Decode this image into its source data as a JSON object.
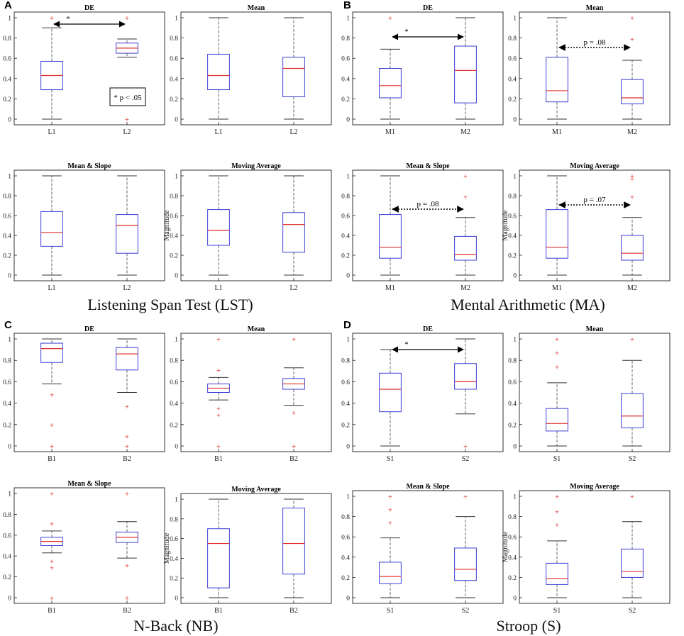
{
  "colors": {
    "box": "#3d3dd6",
    "median": "#e03030",
    "outlier": "#e03030",
    "whisker": "#555555",
    "frame": "#000000"
  },
  "sections": [
    {
      "letter": "A",
      "caption": "Listening Span Test (LST)"
    },
    {
      "letter": "B",
      "caption": "Mental Arithmetic (MA)"
    },
    {
      "letter": "C",
      "caption": "N-Back (NB)"
    },
    {
      "letter": "D",
      "caption": "Stroop (S)"
    }
  ],
  "ylabel": "Magnitude",
  "yticks": [
    "0",
    "0.2",
    "0.4",
    "0.6",
    "0.8",
    "1"
  ],
  "note": "* p < .05",
  "chart_data": [
    {
      "type": "box",
      "title": "DE",
      "categories": [
        "L1",
        "L2"
      ],
      "ylim": [
        0,
        1
      ],
      "boxes": [
        {
          "whislo": 0,
          "q1": 0.29,
          "med": 0.43,
          "q3": 0.57,
          "whishi": 0.9,
          "fliers": [
            1.0
          ]
        },
        {
          "whislo": 0.61,
          "q1": 0.65,
          "med": 0.7,
          "q3": 0.75,
          "whishi": 0.79,
          "fliers": [
            1.0,
            0.0
          ]
        }
      ],
      "annotation": {
        "text": "*",
        "style": "solid"
      }
    },
    {
      "type": "box",
      "title": "Mean",
      "categories": [
        "L1",
        "L2"
      ],
      "ylim": [
        0,
        1
      ],
      "boxes": [
        {
          "whislo": 0,
          "q1": 0.29,
          "med": 0.43,
          "q3": 0.64,
          "whishi": 1.0,
          "fliers": []
        },
        {
          "whislo": 0,
          "q1": 0.22,
          "med": 0.5,
          "q3": 0.61,
          "whishi": 1.0,
          "fliers": []
        }
      ]
    },
    {
      "type": "box",
      "title": "Mean & Slope",
      "categories": [
        "L1",
        "L2"
      ],
      "ylim": [
        0,
        1
      ],
      "boxes": [
        {
          "whislo": 0,
          "q1": 0.29,
          "med": 0.43,
          "q3": 0.64,
          "whishi": 1.0,
          "fliers": []
        },
        {
          "whislo": 0,
          "q1": 0.22,
          "med": 0.5,
          "q3": 0.61,
          "whishi": 1.0,
          "fliers": []
        }
      ]
    },
    {
      "type": "box",
      "title": "Moving Average",
      "categories": [
        "L1",
        "L2"
      ],
      "ylim": [
        0,
        1
      ],
      "ylabel": true,
      "boxes": [
        {
          "whislo": 0,
          "q1": 0.3,
          "med": 0.45,
          "q3": 0.66,
          "whishi": 1.0,
          "fliers": []
        },
        {
          "whislo": 0,
          "q1": 0.23,
          "med": 0.51,
          "q3": 0.63,
          "whishi": 1.0,
          "fliers": []
        }
      ]
    },
    {
      "type": "box",
      "title": "DE",
      "categories": [
        "M1",
        "M2"
      ],
      "ylim": [
        0,
        1
      ],
      "boxes": [
        {
          "whislo": 0,
          "q1": 0.21,
          "med": 0.33,
          "q3": 0.5,
          "whishi": 0.69,
          "fliers": [
            1.0
          ]
        },
        {
          "whislo": 0,
          "q1": 0.16,
          "med": 0.48,
          "q3": 0.72,
          "whishi": 1.0,
          "fliers": []
        }
      ],
      "annotation": {
        "text": "*",
        "style": "solid"
      }
    },
    {
      "type": "box",
      "title": "Mean",
      "categories": [
        "M1",
        "M2"
      ],
      "ylim": [
        0,
        1
      ],
      "boxes": [
        {
          "whislo": 0,
          "q1": 0.17,
          "med": 0.28,
          "q3": 0.61,
          "whishi": 1.0,
          "fliers": []
        },
        {
          "whislo": 0,
          "q1": 0.15,
          "med": 0.21,
          "q3": 0.39,
          "whishi": 0.58,
          "fliers": [
            0.79,
            1.0
          ]
        }
      ],
      "annotation": {
        "text": "p = .08",
        "style": "dotted"
      }
    },
    {
      "type": "box",
      "title": "Mean & Slope",
      "categories": [
        "M1",
        "M2"
      ],
      "ylim": [
        0,
        1
      ],
      "boxes": [
        {
          "whislo": 0,
          "q1": 0.17,
          "med": 0.28,
          "q3": 0.61,
          "whishi": 1.0,
          "fliers": []
        },
        {
          "whislo": 0,
          "q1": 0.15,
          "med": 0.21,
          "q3": 0.39,
          "whishi": 0.58,
          "fliers": [
            0.79,
            1.0
          ]
        }
      ],
      "annotation": {
        "text": "p = .08",
        "style": "dotted"
      }
    },
    {
      "type": "box",
      "title": "Moving Average",
      "categories": [
        "M1",
        "M2"
      ],
      "ylim": [
        0,
        1
      ],
      "ylabel": true,
      "boxes": [
        {
          "whislo": 0,
          "q1": 0.17,
          "med": 0.28,
          "q3": 0.66,
          "whishi": 1.0,
          "fliers": []
        },
        {
          "whislo": 0,
          "q1": 0.15,
          "med": 0.22,
          "q3": 0.4,
          "whishi": 0.58,
          "fliers": [
            0.79,
            0.97,
            1.0
          ]
        }
      ],
      "annotation": {
        "text": "p = .07",
        "style": "dotted"
      }
    },
    {
      "type": "box",
      "title": "DE",
      "categories": [
        "B1",
        "B2"
      ],
      "ylim": [
        0,
        1
      ],
      "boxes": [
        {
          "whislo": 0.58,
          "q1": 0.78,
          "med": 0.91,
          "q3": 0.96,
          "whishi": 1.0,
          "fliers": [
            0.48,
            0.2,
            0.0
          ]
        },
        {
          "whislo": 0.5,
          "q1": 0.71,
          "med": 0.86,
          "q3": 0.92,
          "whishi": 1.0,
          "fliers": [
            0.37,
            0.09,
            0.0
          ]
        }
      ]
    },
    {
      "type": "box",
      "title": "Mean",
      "categories": [
        "B1",
        "B2"
      ],
      "ylim": [
        0,
        1
      ],
      "boxes": [
        {
          "whislo": 0.43,
          "q1": 0.5,
          "med": 0.54,
          "q3": 0.58,
          "whishi": 0.64,
          "fliers": [
            1.0,
            0.71,
            0.35,
            0.29,
            0.0
          ]
        },
        {
          "whislo": 0.38,
          "q1": 0.53,
          "med": 0.58,
          "q3": 0.63,
          "whishi": 0.73,
          "fliers": [
            1.0,
            0.31,
            0.0
          ]
        }
      ]
    },
    {
      "type": "box",
      "title": "Mean & Slope",
      "categories": [
        "B1",
        "B2"
      ],
      "ylim": [
        0,
        1
      ],
      "boxes": [
        {
          "whislo": 0.43,
          "q1": 0.5,
          "med": 0.54,
          "q3": 0.58,
          "whishi": 0.64,
          "fliers": [
            1.0,
            0.71,
            0.35,
            0.29,
            0.0
          ]
        },
        {
          "whislo": 0.38,
          "q1": 0.53,
          "med": 0.58,
          "q3": 0.63,
          "whishi": 0.73,
          "fliers": [
            1.0,
            0.31,
            0.0
          ]
        }
      ]
    },
    {
      "type": "box",
      "title": "Moving Average",
      "categories": [
        "B1",
        "B2"
      ],
      "ylim": [
        0,
        1
      ],
      "ylabel": true,
      "boxes": [
        {
          "whislo": 0,
          "q1": 0.1,
          "med": 0.55,
          "q3": 0.7,
          "whishi": 1.0,
          "fliers": []
        },
        {
          "whislo": 0,
          "q1": 0.24,
          "med": 0.55,
          "q3": 0.91,
          "whishi": 1.0,
          "fliers": []
        }
      ]
    },
    {
      "type": "box",
      "title": "DE",
      "categories": [
        "S1",
        "S2"
      ],
      "ylim": [
        0,
        1
      ],
      "boxes": [
        {
          "whislo": 0,
          "q1": 0.32,
          "med": 0.53,
          "q3": 0.68,
          "whishi": 0.9,
          "fliers": []
        },
        {
          "whislo": 0.3,
          "q1": 0.53,
          "med": 0.6,
          "q3": 0.77,
          "whishi": 1.0,
          "fliers": [
            0.0
          ]
        }
      ],
      "annotation": {
        "text": "*",
        "style": "solid"
      }
    },
    {
      "type": "box",
      "title": "Mean",
      "categories": [
        "S1",
        "S2"
      ],
      "ylim": [
        0,
        1
      ],
      "boxes": [
        {
          "whislo": 0,
          "q1": 0.14,
          "med": 0.21,
          "q3": 0.35,
          "whishi": 0.59,
          "fliers": [
            0.74,
            0.87,
            1.0
          ]
        },
        {
          "whislo": 0,
          "q1": 0.17,
          "med": 0.28,
          "q3": 0.49,
          "whishi": 0.8,
          "fliers": [
            1.0
          ]
        }
      ]
    },
    {
      "type": "box",
      "title": "Mean & Slope",
      "categories": [
        "S1",
        "S2"
      ],
      "ylim": [
        0,
        1
      ],
      "boxes": [
        {
          "whislo": 0,
          "q1": 0.14,
          "med": 0.21,
          "q3": 0.35,
          "whishi": 0.59,
          "fliers": [
            0.74,
            0.87,
            1.0
          ]
        },
        {
          "whislo": 0,
          "q1": 0.17,
          "med": 0.28,
          "q3": 0.49,
          "whishi": 0.8,
          "fliers": [
            1.0
          ]
        }
      ]
    },
    {
      "type": "box",
      "title": "Moving Average",
      "categories": [
        "S1",
        "S2"
      ],
      "ylim": [
        0,
        1
      ],
      "ylabel": true,
      "boxes": [
        {
          "whislo": 0,
          "q1": 0.13,
          "med": 0.19,
          "q3": 0.34,
          "whishi": 0.56,
          "fliers": [
            0.72,
            0.85,
            1.0
          ]
        },
        {
          "whislo": 0,
          "q1": 0.2,
          "med": 0.26,
          "q3": 0.48,
          "whishi": 0.75,
          "fliers": [
            1.0
          ]
        }
      ]
    }
  ]
}
